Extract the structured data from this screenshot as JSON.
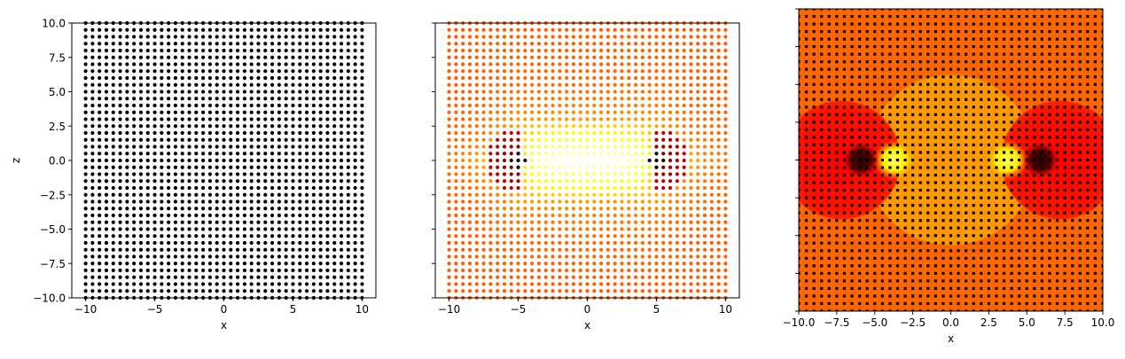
{
  "chart_data": [
    {
      "type": "scatter",
      "title": "",
      "xlabel": "x",
      "ylabel": "z",
      "xlim": [
        -11,
        11
      ],
      "ylim": [
        -10,
        10
      ],
      "grid": false,
      "points": {
        "x_range": [
          -10,
          10
        ],
        "z_range": [
          -10,
          10
        ],
        "step": 0.5,
        "color": "#000000"
      },
      "xticks": [
        -10,
        -5,
        0,
        5,
        10
      ],
      "xtick_labels": [
        "−10",
        "−5",
        "0",
        "5",
        "10"
      ],
      "yticks": [
        10,
        7.5,
        5,
        2.5,
        0,
        -2.5,
        -5,
        -7.5,
        -10
      ],
      "ytick_labels": [
        "10.0",
        "7.5",
        "5.0",
        "2.5",
        "0.0",
        "−2.5",
        "−5.0",
        "−7.5",
        "−10.0"
      ]
    },
    {
      "type": "scatter",
      "title": "",
      "xlabel": "x",
      "ylabel": "",
      "xlim": [
        -11,
        11
      ],
      "ylim": [
        -10,
        10
      ],
      "grid": false,
      "colormap": "hot",
      "sources": [
        {
          "x": -5,
          "z": 0
        },
        {
          "x": 5,
          "z": 0
        }
      ],
      "points": {
        "x_range": [
          -10,
          10
        ],
        "z_range": [
          -10,
          10
        ],
        "step": 0.5
      },
      "xticks": [
        -10,
        -5,
        0,
        5,
        10
      ],
      "xtick_labels": [
        "−10",
        "−5",
        "0",
        "5",
        "10"
      ],
      "yticks": [
        10,
        7.5,
        5,
        2.5,
        0,
        -2.5,
        -5,
        -7.5,
        -10
      ],
      "ytick_labels": [
        "",
        "",
        "",
        "",
        "",
        "",
        "",
        "",
        ""
      ]
    },
    {
      "type": "heatmap",
      "title": "",
      "xlabel": "x",
      "ylabel": "",
      "xlim": [
        -10,
        10
      ],
      "ylim": [
        -10,
        10
      ],
      "grid": false,
      "colormap": "hot",
      "regions": {
        "background_color": "#ff6600",
        "central_circle": {
          "cx": 0,
          "cz": 0,
          "r": 5.6,
          "color": "#ff9900"
        },
        "side_circles": [
          {
            "cx": -7.2,
            "cz": 0,
            "r": 3.9,
            "color": "#ff0000"
          },
          {
            "cx": 7.2,
            "cz": 0,
            "r": 3.9,
            "color": "#ff0000"
          }
        ],
        "bright_spots": [
          {
            "cx": -3.7,
            "cz": 0,
            "r": 1.4,
            "color": "#ffff33"
          },
          {
            "cx": 3.7,
            "cz": 0,
            "r": 1.4,
            "color": "#ffff33"
          }
        ],
        "dark_spots": [
          {
            "cx": -5.9,
            "cz": 0,
            "r": 0.9,
            "color": "#330000"
          },
          {
            "cx": 5.9,
            "cz": 0,
            "r": 0.9,
            "color": "#330000"
          }
        ]
      },
      "markers": {
        "x_range": [
          -10,
          10
        ],
        "z_range": [
          -10,
          10
        ],
        "step": 0.5,
        "color": "#000000"
      },
      "xticks": [
        -10,
        -7.5,
        -5,
        -2.5,
        0,
        2.5,
        5,
        7.5,
        10
      ],
      "xtick_labels": [
        "−10.0",
        "−7.5",
        "−5.0",
        "−2.5",
        "0.0",
        "2.5",
        "5.0",
        "7.5",
        "10.0"
      ],
      "yticks": [
        10,
        7.5,
        5,
        2.5,
        0,
        -2.5,
        -5,
        -7.5,
        -10
      ],
      "ytick_labels": [
        "",
        "",
        "",
        "",
        "",
        "",
        "",
        "",
        ""
      ]
    }
  ]
}
